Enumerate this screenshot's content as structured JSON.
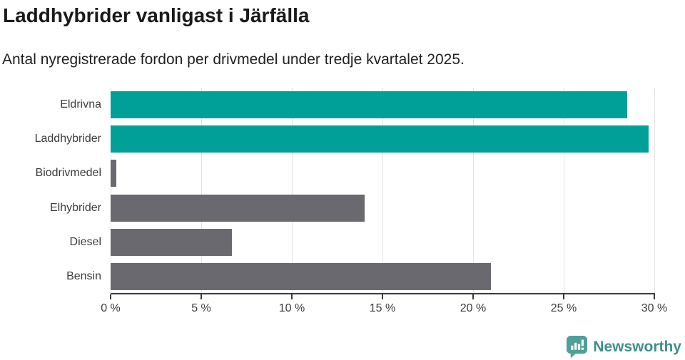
{
  "chart_data": {
    "type": "bar",
    "orientation": "horizontal",
    "title": "Laddhybrider vanligast i Järfälla",
    "subtitle": "Antal nyregistrerade fordon per drivmedel under tredje kvartalet 2025.",
    "categories": [
      "Eldrivna",
      "Laddhybrider",
      "Biodrivmedel",
      "Elhybrider",
      "Diesel",
      "Bensin"
    ],
    "values": [
      28.5,
      29.7,
      0.3,
      14,
      6.7,
      21
    ],
    "value_unit": "%",
    "xlim": [
      0,
      30
    ],
    "xticks": [
      0,
      5,
      10,
      15,
      20,
      25,
      30
    ],
    "xtick_labels": [
      "0 %",
      "5 %",
      "10 %",
      "15 %",
      "20 %",
      "25 %",
      "30 %"
    ],
    "bar_colors": [
      "#00A099",
      "#00A099",
      "#6B6970",
      "#6B6970",
      "#6B6970",
      "#6B6970"
    ],
    "highlight_color": "#00A099",
    "default_color": "#6B6970",
    "grid": "vertical gridlines at every x tick, behind bars",
    "legend": "none",
    "value_labels": "none"
  },
  "footer": {
    "brand": "Newsworthy",
    "logo_icon": "newsworthy-speech-bubble-bar-chart-icon",
    "logo_color": "#4FA09A",
    "brand_text_color": "#3E908B"
  },
  "colors": {
    "background": "#FFFFFF",
    "title_text": "#1A1A1A",
    "subtitle_text": "#212121",
    "axis": "#3C3C3C",
    "tick_label_text": "#3C3C3C",
    "category_label_text": "#3C3C3C",
    "gridline": "#E3E3E3"
  }
}
